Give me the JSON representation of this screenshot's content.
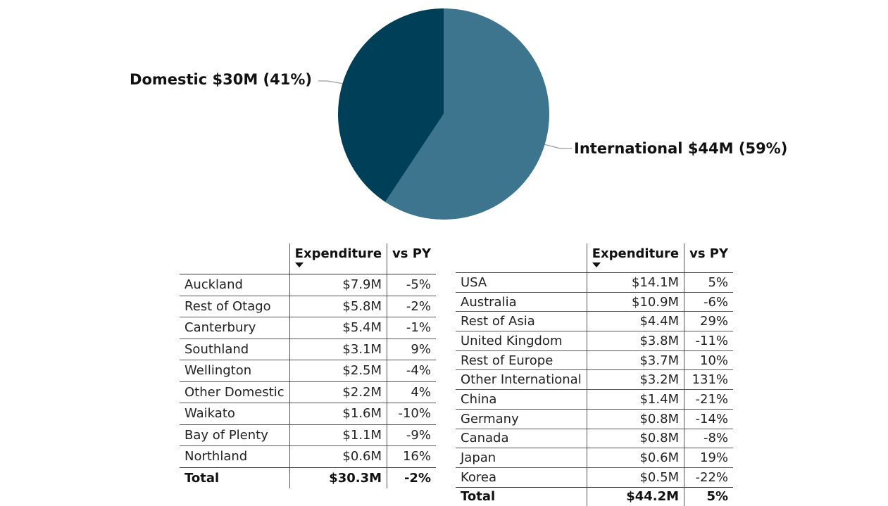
{
  "chart_data": {
    "type": "pie",
    "slices": [
      {
        "label": "International $44M (59%)",
        "value": 44.2,
        "percent": 59,
        "color": "#3d758f"
      },
      {
        "label": "Domestic $30M (41%)",
        "value": 30.3,
        "percent": 41,
        "color": "#003f58"
      }
    ]
  },
  "domestic_table": {
    "columns": [
      "Expenditure",
      "vs PY"
    ],
    "rows": [
      {
        "name": "Auckland",
        "expenditure": "$7.9M",
        "vs_py": "-5%"
      },
      {
        "name": "Rest of Otago",
        "expenditure": "$5.8M",
        "vs_py": "-2%"
      },
      {
        "name": "Canterbury",
        "expenditure": "$5.4M",
        "vs_py": "-1%"
      },
      {
        "name": "Southland",
        "expenditure": "$3.1M",
        "vs_py": "9%"
      },
      {
        "name": "Wellington",
        "expenditure": "$2.5M",
        "vs_py": "-4%"
      },
      {
        "name": "Other Domestic",
        "expenditure": "$2.2M",
        "vs_py": "4%"
      },
      {
        "name": "Waikato",
        "expenditure": "$1.6M",
        "vs_py": "-10%"
      },
      {
        "name": "Bay of Plenty",
        "expenditure": "$1.1M",
        "vs_py": "-9%"
      },
      {
        "name": "Northland",
        "expenditure": "$0.6M",
        "vs_py": "16%"
      }
    ],
    "total": {
      "name": "Total",
      "expenditure": "$30.3M",
      "vs_py": "-2%"
    }
  },
  "international_table": {
    "columns": [
      "Expenditure",
      "vs PY"
    ],
    "rows": [
      {
        "name": "USA",
        "expenditure": "$14.1M",
        "vs_py": "5%"
      },
      {
        "name": "Australia",
        "expenditure": "$10.9M",
        "vs_py": "-6%"
      },
      {
        "name": "Rest of Asia",
        "expenditure": "$4.4M",
        "vs_py": "29%"
      },
      {
        "name": "United Kingdom",
        "expenditure": "$3.8M",
        "vs_py": "-11%"
      },
      {
        "name": "Rest of Europe",
        "expenditure": "$3.7M",
        "vs_py": "10%"
      },
      {
        "name": "Other International",
        "expenditure": "$3.2M",
        "vs_py": "131%"
      },
      {
        "name": "China",
        "expenditure": "$1.4M",
        "vs_py": "-21%"
      },
      {
        "name": "Germany",
        "expenditure": "$0.8M",
        "vs_py": "-14%"
      },
      {
        "name": "Canada",
        "expenditure": "$0.8M",
        "vs_py": "-8%"
      },
      {
        "name": "Japan",
        "expenditure": "$0.6M",
        "vs_py": "19%"
      },
      {
        "name": "Korea",
        "expenditure": "$0.5M",
        "vs_py": "-22%"
      }
    ],
    "total": {
      "name": "Total",
      "expenditure": "$44.2M",
      "vs_py": "5%"
    }
  }
}
